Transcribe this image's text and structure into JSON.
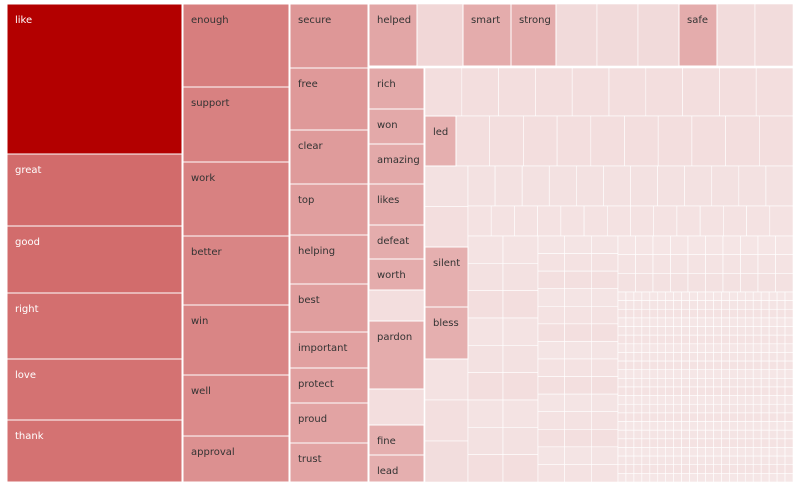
{
  "chart_data": {
    "type": "treemap",
    "color_scale": {
      "high": "#b30000",
      "low": "#f6eaea"
    },
    "labeled_cells": [
      {
        "label": "like",
        "value": 100
      },
      {
        "label": "great",
        "value": 38
      },
      {
        "label": "good",
        "value": 37
      },
      {
        "label": "right",
        "value": 35
      },
      {
        "label": "love",
        "value": 33
      },
      {
        "label": "thank",
        "value": 33
      },
      {
        "label": "enough",
        "value": 26
      },
      {
        "label": "support",
        "value": 24
      },
      {
        "label": "work",
        "value": 24
      },
      {
        "label": "better",
        "value": 22
      },
      {
        "label": "win",
        "value": 22
      },
      {
        "label": "well",
        "value": 19
      },
      {
        "label": "approval",
        "value": 16
      },
      {
        "label": "secure",
        "value": 13
      },
      {
        "label": "free",
        "value": 12
      },
      {
        "label": "clear",
        "value": 11
      },
      {
        "label": "top",
        "value": 10
      },
      {
        "label": "helping",
        "value": 10
      },
      {
        "label": "best",
        "value": 10
      },
      {
        "label": "important",
        "value": 9
      },
      {
        "label": "protect",
        "value": 9
      },
      {
        "label": "proud",
        "value": 8
      },
      {
        "label": "trust",
        "value": 8
      },
      {
        "label": "helped",
        "value": 7
      },
      {
        "label": "smart",
        "value": 5
      },
      {
        "label": "strong",
        "value": 5
      },
      {
        "label": "safe",
        "value": 5
      },
      {
        "label": "rich",
        "value": 6
      },
      {
        "label": "won",
        "value": 6
      },
      {
        "label": "amazing",
        "value": 6
      },
      {
        "label": "likes",
        "value": 6
      },
      {
        "label": "defeat",
        "value": 5
      },
      {
        "label": "worth",
        "value": 5
      },
      {
        "label": "pardon",
        "value": 5
      },
      {
        "label": "fine",
        "value": 4
      },
      {
        "label": "lead",
        "value": 4
      },
      {
        "label": "led",
        "value": 4
      },
      {
        "label": "silent",
        "value": 4
      },
      {
        "label": "bless",
        "value": 4
      }
    ],
    "unlabeled_cell_count": 1200
  }
}
